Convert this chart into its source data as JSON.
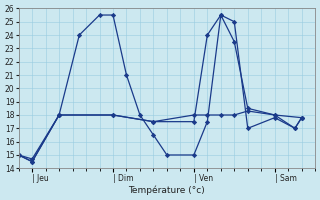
{
  "xlabel": "Température (°c)",
  "ylim": [
    14,
    26
  ],
  "yticks": [
    14,
    15,
    16,
    17,
    18,
    19,
    20,
    21,
    22,
    23,
    24,
    25,
    26
  ],
  "background_color": "#cce8f0",
  "grid_color": "#99cce0",
  "line_color": "#1a3a8a",
  "day_labels": [
    "| Jeu",
    "| Dim",
    "| Ven",
    "| Sam"
  ],
  "day_positions": [
    1,
    7,
    13,
    19
  ],
  "xlim": [
    0,
    22
  ],
  "lines": [
    {
      "x": [
        0,
        1,
        3,
        7,
        10,
        13,
        14,
        15,
        16,
        17,
        19,
        21
      ],
      "y": [
        15,
        14.7,
        18,
        18,
        17.5,
        18,
        18,
        18,
        18,
        18.3,
        18,
        17.8
      ]
    },
    {
      "x": [
        0,
        1,
        3,
        4.5,
        6,
        7,
        8,
        9,
        10,
        11,
        13,
        14,
        15,
        16,
        17,
        19,
        20.5,
        21
      ],
      "y": [
        15,
        14.5,
        18,
        24,
        25.5,
        25.5,
        21,
        18,
        16.5,
        15,
        15,
        17.5,
        25.5,
        25,
        17,
        17.8,
        17,
        17.8
      ]
    },
    {
      "x": [
        0,
        1,
        3,
        7,
        10,
        13,
        14,
        15,
        16,
        17,
        19,
        20.5,
        21
      ],
      "y": [
        15,
        14.5,
        18,
        18,
        17.5,
        17.5,
        24,
        25.5,
        23.5,
        18.5,
        18,
        17,
        17.8
      ]
    }
  ]
}
